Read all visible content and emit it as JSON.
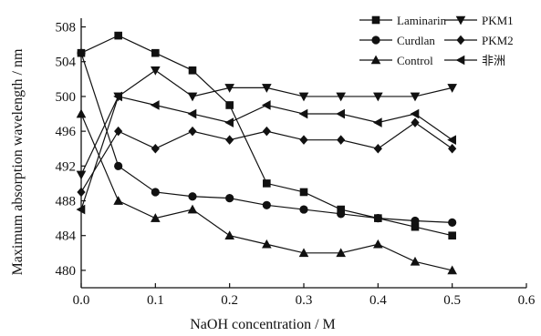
{
  "chart_data": {
    "type": "line",
    "xlabel": "NaOH concentration / M",
    "ylabel": "Maximum absorption wavelength / nm",
    "xlim": [
      0.0,
      0.6
    ],
    "ylim": [
      478,
      509
    ],
    "xticks": [
      "0.0",
      "0.1",
      "0.2",
      "0.3",
      "0.4",
      "0.5",
      "0.6"
    ],
    "yticks": [
      "480",
      "484",
      "488",
      "492",
      "496",
      "500",
      "504",
      "508"
    ],
    "grid": false,
    "legend_position": "top-right",
    "x": [
      0.0,
      0.05,
      0.1,
      0.15,
      0.2,
      0.25,
      0.3,
      0.35,
      0.4,
      0.45,
      0.5
    ],
    "series": [
      {
        "name": "Laminarin",
        "marker": "square",
        "values": [
          505,
          507,
          505,
          503,
          499,
          490,
          489,
          487,
          486,
          485,
          484
        ]
      },
      {
        "name": "Curdlan",
        "marker": "circle",
        "values": [
          505,
          492,
          489,
          488.5,
          488.3,
          487.5,
          487,
          486.5,
          486,
          485.7,
          485.5
        ]
      },
      {
        "name": "Control",
        "marker": "triangle-up",
        "values": [
          498,
          488,
          486,
          487,
          484,
          483,
          482,
          482,
          483,
          481,
          480
        ]
      },
      {
        "name": "PKM1",
        "marker": "triangle-down",
        "values": [
          491,
          500,
          503,
          500,
          501,
          501,
          500,
          500,
          500,
          500,
          501
        ]
      },
      {
        "name": "PKM2",
        "marker": "diamond",
        "values": [
          489,
          496,
          494,
          496,
          495,
          496,
          495,
          495,
          494,
          497,
          494
        ]
      },
      {
        "name": "非洲",
        "marker": "triangle-left",
        "values": [
          487,
          500,
          499,
          498,
          497,
          499,
          498,
          498,
          497,
          498,
          495
        ]
      }
    ]
  }
}
